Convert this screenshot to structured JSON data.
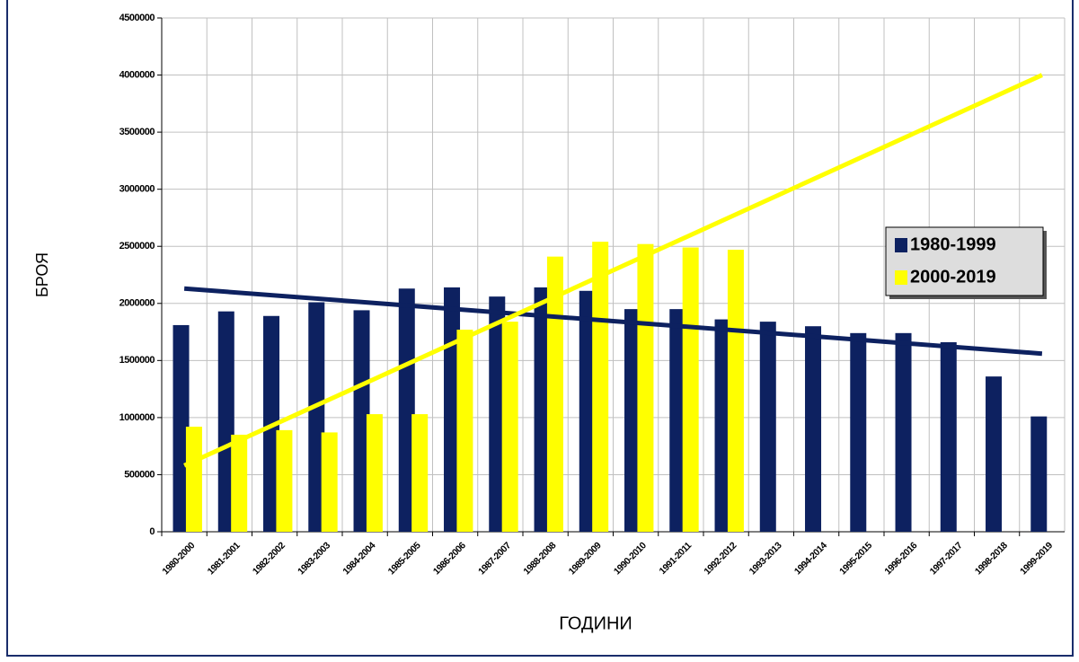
{
  "chart_data": {
    "type": "bar",
    "categories": [
      "1980-2000",
      "1981-2001",
      "1982-2002",
      "1983-2003",
      "1984-2004",
      "1985-2005",
      "1986-2006",
      "1987-2007",
      "1988-2008",
      "1989-2009",
      "1990-2010",
      "1991-2011",
      "1992-2012",
      "1993-2013",
      "1994-2014",
      "1995-2015",
      "1996-2016",
      "1997-2017",
      "1998-2018",
      "1999-2019"
    ],
    "series": [
      {
        "name": "1980-1999",
        "color": "#0d2160",
        "values": [
          1810000,
          1930000,
          1890000,
          2010000,
          1940000,
          2130000,
          2140000,
          2060000,
          2140000,
          2110000,
          1950000,
          1950000,
          1860000,
          1840000,
          1800000,
          1740000,
          1740000,
          1660000,
          1360000,
          1010000
        ],
        "trend": [
          2130000,
          1560000
        ]
      },
      {
        "name": "2000-2019",
        "color": "#ffff00",
        "values": [
          920000,
          850000,
          890000,
          870000,
          1030000,
          1030000,
          1770000,
          1840000,
          2410000,
          2540000,
          2520000,
          2490000,
          2470000,
          null,
          null,
          null,
          null,
          null,
          null,
          null
        ],
        "trend": [
          580000,
          4000000
        ]
      }
    ],
    "ylim": [
      0,
      4500000
    ],
    "yticks": [
      0,
      500000,
      1000000,
      1500000,
      2000000,
      2500000,
      3000000,
      3500000,
      4000000,
      4500000
    ],
    "y_label": "БРОЯ",
    "x_label": "ГОДИНИ",
    "grid": true,
    "legend": "right"
  }
}
